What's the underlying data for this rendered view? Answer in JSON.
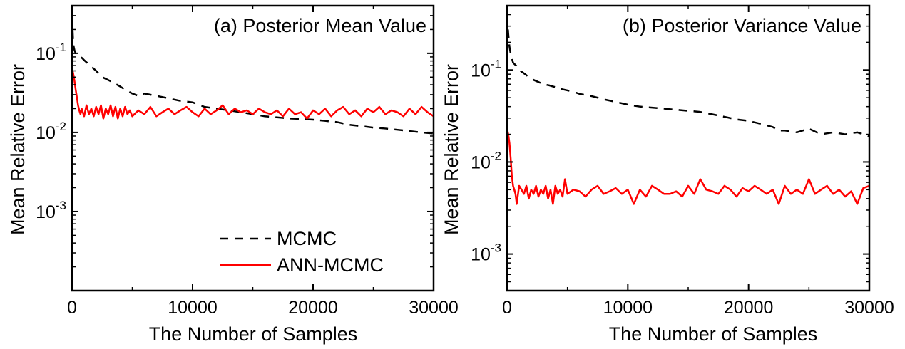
{
  "chart_data": [
    {
      "type": "line",
      "title": "(a) Posterior Mean Value",
      "xlabel": "The Number of Samples",
      "ylabel": "Mean Relative Error",
      "xlim": [
        0,
        30000
      ],
      "ylim": [
        0.0001,
        0.4
      ],
      "yscale": "log",
      "xticks": [
        "0",
        "10000",
        "20000",
        "30000"
      ],
      "yticks": [
        {
          "base": "10",
          "exp": "-1",
          "value": 0.1
        },
        {
          "base": "10",
          "exp": "-2",
          "value": 0.01
        },
        {
          "base": "10",
          "exp": "-3",
          "value": 0.001
        }
      ],
      "legend": "center-right",
      "series": [
        {
          "name": "MCMC",
          "color": "#000000",
          "style": "dashed",
          "x": [
            0,
            100,
            200,
            300,
            500,
            800,
            1000,
            1500,
            2000,
            2500,
            3000,
            3500,
            4000,
            4500,
            5000,
            5500,
            6000,
            7000,
            8000,
            9000,
            10000,
            11000,
            12000,
            13000,
            14000,
            15000,
            16000,
            17000,
            18000,
            19000,
            20000,
            21000,
            22000,
            23000,
            24000,
            25000,
            26000,
            27000,
            28000,
            29000,
            30000
          ],
          "values": [
            0.3,
            0.13,
            0.11,
            0.1,
            0.095,
            0.088,
            0.082,
            0.07,
            0.06,
            0.05,
            0.046,
            0.042,
            0.038,
            0.034,
            0.031,
            0.029,
            0.031,
            0.029,
            0.027,
            0.025,
            0.024,
            0.021,
            0.02,
            0.019,
            0.018,
            0.017,
            0.016,
            0.0155,
            0.015,
            0.0148,
            0.0145,
            0.014,
            0.0135,
            0.0125,
            0.012,
            0.0115,
            0.0112,
            0.0108,
            0.0104,
            0.01,
            0.0097
          ]
        },
        {
          "name": "ANN-MCMC",
          "color": "#ff0000",
          "style": "solid",
          "x": [
            0,
            100,
            200,
            300,
            400,
            500,
            600,
            700,
            800,
            1000,
            1200,
            1400,
            1600,
            1800,
            2000,
            2200,
            2400,
            2600,
            2800,
            3000,
            3200,
            3400,
            3600,
            3800,
            4000,
            4200,
            4400,
            4600,
            4800,
            5000,
            5500,
            6000,
            6500,
            7000,
            7500,
            8000,
            8500,
            9000,
            9500,
            10000,
            10500,
            11000,
            11500,
            12000,
            12500,
            13000,
            13500,
            14000,
            14500,
            15000,
            15500,
            16000,
            16500,
            17000,
            17500,
            18000,
            18500,
            19000,
            19500,
            20000,
            20500,
            21000,
            21500,
            22000,
            22500,
            23000,
            23500,
            24000,
            24500,
            25000,
            25500,
            26000,
            26500,
            27000,
            27500,
            28000,
            28500,
            29000,
            29500,
            30000
          ],
          "values": [
            0.065,
            0.055,
            0.045,
            0.035,
            0.028,
            0.022,
            0.019,
            0.017,
            0.02,
            0.016,
            0.022,
            0.017,
            0.02,
            0.016,
            0.021,
            0.017,
            0.022,
            0.015,
            0.02,
            0.017,
            0.022,
            0.016,
            0.021,
            0.015,
            0.02,
            0.016,
            0.021,
            0.017,
            0.019,
            0.016,
            0.019,
            0.017,
            0.021,
            0.016,
            0.018,
            0.02,
            0.017,
            0.019,
            0.021,
            0.018,
            0.016,
            0.02,
            0.017,
            0.019,
            0.022,
            0.017,
            0.02,
            0.018,
            0.019,
            0.017,
            0.02,
            0.018,
            0.017,
            0.019,
            0.016,
            0.02,
            0.017,
            0.018,
            0.015,
            0.019,
            0.017,
            0.02,
            0.016,
            0.019,
            0.021,
            0.017,
            0.019,
            0.016,
            0.02,
            0.018,
            0.021,
            0.017,
            0.019,
            0.018,
            0.016,
            0.02,
            0.017,
            0.021,
            0.018,
            0.016
          ]
        }
      ]
    },
    {
      "type": "line",
      "title": "(b) Posterior Variance Value",
      "xlabel": "The Number of Samples",
      "ylabel": "Mean Relative Error",
      "xlim": [
        0,
        30000
      ],
      "ylim": [
        0.0004,
        0.5
      ],
      "yscale": "log",
      "xticks": [
        "0",
        "10000",
        "20000",
        "30000"
      ],
      "yticks": [
        {
          "base": "10",
          "exp": "-1",
          "value": 0.1
        },
        {
          "base": "10",
          "exp": "-2",
          "value": 0.01
        },
        {
          "base": "10",
          "exp": "-3",
          "value": 0.001
        }
      ],
      "series": [
        {
          "name": "MCMC",
          "color": "#000000",
          "style": "dashed",
          "x": [
            0,
            100,
            200,
            300,
            500,
            800,
            1000,
            1500,
            2000,
            2500,
            3000,
            3500,
            4000,
            4500,
            5000,
            5500,
            6000,
            7000,
            8000,
            9000,
            10000,
            11000,
            12000,
            13000,
            14000,
            15000,
            16000,
            17000,
            18000,
            19000,
            20000,
            21000,
            22000,
            22500,
            23000,
            24000,
            25000,
            26000,
            27000,
            28000,
            29000,
            30000
          ],
          "values": [
            0.4,
            0.25,
            0.18,
            0.15,
            0.12,
            0.11,
            0.1,
            0.09,
            0.08,
            0.075,
            0.07,
            0.068,
            0.065,
            0.062,
            0.06,
            0.058,
            0.055,
            0.052,
            0.048,
            0.045,
            0.042,
            0.04,
            0.039,
            0.038,
            0.037,
            0.036,
            0.035,
            0.033,
            0.031,
            0.029,
            0.028,
            0.026,
            0.024,
            0.022,
            0.022,
            0.021,
            0.023,
            0.02,
            0.021,
            0.02,
            0.021,
            0.019
          ]
        },
        {
          "name": "ANN-MCMC",
          "color": "#ff0000",
          "style": "solid",
          "x": [
            0,
            100,
            200,
            300,
            400,
            500,
            600,
            700,
            800,
            1000,
            1200,
            1400,
            1600,
            1800,
            2000,
            2200,
            2400,
            2600,
            2800,
            3000,
            3200,
            3400,
            3600,
            3800,
            4000,
            4200,
            4400,
            4600,
            4800,
            5000,
            5500,
            6000,
            6500,
            7000,
            7500,
            8000,
            8500,
            9000,
            9500,
            10000,
            10500,
            11000,
            11500,
            12000,
            12500,
            13000,
            13500,
            14000,
            14500,
            15000,
            15500,
            16000,
            16500,
            17000,
            17500,
            18000,
            18500,
            19000,
            19500,
            20000,
            20500,
            21000,
            21500,
            22000,
            22500,
            23000,
            23500,
            24000,
            24500,
            25000,
            25500,
            26000,
            26500,
            27000,
            27500,
            28000,
            28500,
            29000,
            29500,
            30000
          ],
          "values": [
            0.023,
            0.02,
            0.016,
            0.011,
            0.007,
            0.0055,
            0.005,
            0.0045,
            0.0035,
            0.0055,
            0.005,
            0.0045,
            0.0055,
            0.004,
            0.005,
            0.0045,
            0.0055,
            0.0042,
            0.005,
            0.0045,
            0.0055,
            0.004,
            0.005,
            0.0035,
            0.0055,
            0.0045,
            0.005,
            0.0042,
            0.0065,
            0.0045,
            0.005,
            0.0048,
            0.0042,
            0.005,
            0.0055,
            0.0045,
            0.0048,
            0.0052,
            0.0045,
            0.005,
            0.0035,
            0.005,
            0.0042,
            0.0055,
            0.005,
            0.0045,
            0.0045,
            0.0048,
            0.0042,
            0.0055,
            0.0045,
            0.0065,
            0.005,
            0.0048,
            0.0045,
            0.0055,
            0.005,
            0.0042,
            0.0052,
            0.0048,
            0.0055,
            0.005,
            0.0045,
            0.005,
            0.0035,
            0.0055,
            0.0045,
            0.005,
            0.0045,
            0.0065,
            0.0045,
            0.005,
            0.0055,
            0.0045,
            0.005,
            0.0042,
            0.0048,
            0.0035,
            0.0052,
            0.0055
          ]
        }
      ]
    }
  ]
}
